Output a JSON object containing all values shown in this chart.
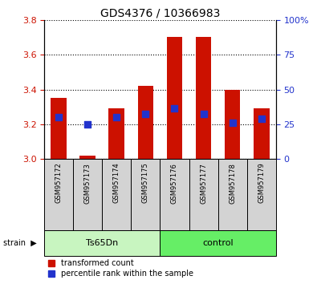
{
  "title": "GDS4376 / 10366983",
  "samples": [
    "GSM957172",
    "GSM957173",
    "GSM957174",
    "GSM957175",
    "GSM957176",
    "GSM957177",
    "GSM957178",
    "GSM957179"
  ],
  "groups": [
    "Ts65Dn",
    "Ts65Dn",
    "Ts65Dn",
    "Ts65Dn",
    "control",
    "control",
    "control",
    "control"
  ],
  "group_spans": [
    [
      0,
      3,
      "Ts65Dn",
      "#c8f5c0"
    ],
    [
      4,
      7,
      "control",
      "#66ee66"
    ]
  ],
  "bar_base": 3.0,
  "transformed_counts": [
    3.35,
    3.02,
    3.29,
    3.42,
    3.7,
    3.7,
    3.4,
    3.29
  ],
  "percentile_ranks": [
    3.24,
    3.2,
    3.24,
    3.26,
    3.29,
    3.26,
    3.21,
    3.23
  ],
  "ylim_left": [
    3.0,
    3.8
  ],
  "ylim_right": [
    0,
    100
  ],
  "yticks_left": [
    3.0,
    3.2,
    3.4,
    3.6,
    3.8
  ],
  "yticks_right": [
    0,
    25,
    50,
    75,
    100
  ],
  "bar_color": "#cc1100",
  "dot_color": "#2233cc",
  "bar_width": 0.55,
  "dot_size": 35,
  "legend_labels": [
    "transformed count",
    "percentile rank within the sample"
  ],
  "strain_label": "strain",
  "background_color": "#ffffff",
  "tick_color_left": "#cc1100",
  "tick_color_right": "#2233cc",
  "sample_box_color": "#d3d3d3",
  "title_fontsize": 10,
  "tick_fontsize": 8,
  "legend_fontsize": 7,
  "sample_fontsize": 6
}
